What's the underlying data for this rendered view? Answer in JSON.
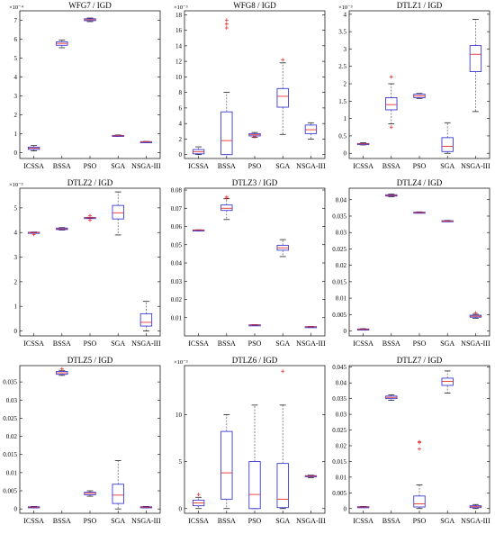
{
  "colors": {
    "box": "#3b3bd6",
    "median": "#e8312f",
    "whisker": "#555555",
    "outlier": "#e8312f",
    "axis": "#000000"
  },
  "chart_data": [
    {
      "type": "box",
      "title": "WFG7 / IGD",
      "multiplier": "×10⁻⁴",
      "ylim": [
        -0.3,
        7.5
      ],
      "yticks": [
        "0",
        "1",
        "2",
        "3",
        "4",
        "5",
        "6",
        "7"
      ],
      "ytick_values": [
        0,
        1,
        2,
        3,
        4,
        5,
        6,
        7
      ],
      "categories": [
        "ICSSA",
        "BSSA",
        "PSO",
        "SGA",
        "NSGA-III"
      ],
      "boxes": [
        {
          "min": 0.1,
          "q1": 0.18,
          "median": 0.24,
          "q3": 0.3,
          "max": 0.38,
          "outliers": []
        },
        {
          "min": 5.55,
          "q1": 5.68,
          "median": 5.78,
          "q3": 5.86,
          "max": 5.95,
          "outliers": []
        },
        {
          "min": 6.93,
          "q1": 6.98,
          "median": 7.03,
          "q3": 7.08,
          "max": 7.12,
          "outliers": []
        },
        {
          "min": 0.86,
          "q1": 0.88,
          "median": 0.9,
          "q3": 0.92,
          "max": 0.94,
          "outliers": []
        },
        {
          "min": 0.55,
          "q1": 0.57,
          "median": 0.58,
          "q3": 0.59,
          "max": 0.6,
          "outliers": []
        }
      ]
    },
    {
      "type": "box",
      "title": "WFG8 / IGD",
      "multiplier": "×10⁻³",
      "ylim": [
        -0.5,
        18.5
      ],
      "yticks": [
        "0",
        "2",
        "4",
        "6",
        "8",
        "10",
        "12",
        "14",
        "16",
        "18"
      ],
      "ytick_values": [
        0,
        2,
        4,
        6,
        8,
        10,
        12,
        14,
        16,
        18
      ],
      "categories": [
        "ICSSA",
        "BSSA",
        "PSO",
        "SGA",
        "NSGA-III"
      ],
      "boxes": [
        {
          "min": 0.0,
          "q1": 0.1,
          "median": 0.35,
          "q3": 0.65,
          "max": 1.0,
          "outliers": []
        },
        {
          "min": 0.0,
          "q1": 0.0,
          "median": 1.8,
          "q3": 5.5,
          "max": 8.0,
          "outliers": [
            16.3,
            16.8,
            17.3
          ]
        },
        {
          "min": 2.2,
          "q1": 2.4,
          "median": 2.55,
          "q3": 2.7,
          "max": 2.85,
          "outliers": [
            2.3
          ]
        },
        {
          "min": 2.6,
          "q1": 6.1,
          "median": 7.5,
          "q3": 8.5,
          "max": 11.8,
          "outliers": [
            12.2
          ]
        },
        {
          "min": 2.0,
          "q1": 2.7,
          "median": 3.2,
          "q3": 3.8,
          "max": 4.1,
          "outliers": []
        }
      ]
    },
    {
      "type": "box",
      "title": "DTLZ1 / IGD",
      "multiplier": "×10⁻³",
      "ylim": [
        -0.15,
        4.1
      ],
      "yticks": [
        "0",
        "0.5",
        "1",
        "1.5",
        "2",
        "2.5",
        "3",
        "3.5",
        "4"
      ],
      "ytick_values": [
        0,
        0.5,
        1,
        1.5,
        2,
        2.5,
        3,
        3.5,
        4
      ],
      "categories": [
        "ICSSA",
        "BSSA",
        "PSO",
        "SGA",
        "NSGA-III"
      ],
      "boxes": [
        {
          "min": 0.24,
          "q1": 0.26,
          "median": 0.27,
          "q3": 0.28,
          "max": 0.3,
          "outliers": []
        },
        {
          "min": 0.85,
          "q1": 1.25,
          "median": 1.4,
          "q3": 1.6,
          "max": 2.0,
          "outliers": [
            0.75,
            2.2
          ]
        },
        {
          "min": 1.58,
          "q1": 1.6,
          "median": 1.65,
          "q3": 1.7,
          "max": 1.72,
          "outliers": []
        },
        {
          "min": 0.0,
          "q1": 0.05,
          "median": 0.2,
          "q3": 0.45,
          "max": 0.88,
          "outliers": []
        },
        {
          "min": 1.2,
          "q1": 2.35,
          "median": 2.85,
          "q3": 3.1,
          "max": 3.85,
          "outliers": []
        }
      ]
    },
    {
      "type": "box",
      "title": "DTLZ2 / IGD",
      "multiplier": "×10⁻³",
      "ylim": [
        -0.2,
        5.8
      ],
      "yticks": [
        "0",
        "1",
        "2",
        "3",
        "4",
        "5"
      ],
      "ytick_values": [
        0,
        1,
        2,
        3,
        4,
        5
      ],
      "categories": [
        "ICSSA",
        "BSSA",
        "PSO",
        "SGA",
        "NSGA-III"
      ],
      "boxes": [
        {
          "min": 3.98,
          "q1": 3.99,
          "median": 4.0,
          "q3": 4.01,
          "max": 4.02,
          "outliers": [
            3.92
          ]
        },
        {
          "min": 4.1,
          "q1": 4.12,
          "median": 4.15,
          "q3": 4.18,
          "max": 4.2,
          "outliers": []
        },
        {
          "min": 4.58,
          "q1": 4.59,
          "median": 4.6,
          "q3": 4.61,
          "max": 4.62,
          "outliers": [
            4.5,
            4.68
          ]
        },
        {
          "min": 3.9,
          "q1": 4.55,
          "median": 4.8,
          "q3": 5.1,
          "max": 5.65,
          "outliers": []
        },
        {
          "min": 0.0,
          "q1": 0.2,
          "median": 0.35,
          "q3": 0.7,
          "max": 1.2,
          "outliers": []
        }
      ]
    },
    {
      "type": "box",
      "title": "DTLZ3 / IGD",
      "multiplier": "",
      "ylim": [
        0.0,
        0.081
      ],
      "yticks": [
        "0.01",
        "0.02",
        "0.03",
        "0.04",
        "0.05",
        "0.06",
        "0.07",
        "0.08"
      ],
      "ytick_values": [
        0.01,
        0.02,
        0.03,
        0.04,
        0.05,
        0.06,
        0.07,
        0.08
      ],
      "categories": [
        "ICSSA",
        "BSSA",
        "PSO",
        "SGA",
        "NSGA-III"
      ],
      "boxes": [
        {
          "min": 0.0578,
          "q1": 0.0579,
          "median": 0.058,
          "q3": 0.0581,
          "max": 0.0582,
          "outliers": []
        },
        {
          "min": 0.0638,
          "q1": 0.0688,
          "median": 0.07,
          "q3": 0.0718,
          "max": 0.0752,
          "outliers": [
            0.0755,
            0.0762
          ]
        },
        {
          "min": 0.0058,
          "q1": 0.0059,
          "median": 0.006,
          "q3": 0.0061,
          "max": 0.0062,
          "outliers": []
        },
        {
          "min": 0.0435,
          "q1": 0.047,
          "median": 0.0483,
          "q3": 0.0497,
          "max": 0.0528,
          "outliers": []
        },
        {
          "min": 0.0048,
          "q1": 0.0049,
          "median": 0.005,
          "q3": 0.0051,
          "max": 0.0052,
          "outliers": []
        }
      ]
    },
    {
      "type": "box",
      "title": "DTLZ4 / IGD",
      "multiplier": "",
      "ylim": [
        -0.0015,
        0.0435
      ],
      "yticks": [
        "0",
        "0.005",
        "0.01",
        "0.015",
        "0.02",
        "0.025",
        "0.03",
        "0.035",
        "0.04"
      ],
      "ytick_values": [
        0,
        0.005,
        0.01,
        0.015,
        0.02,
        0.025,
        0.03,
        0.035,
        0.04
      ],
      "categories": [
        "ICSSA",
        "BSSA",
        "PSO",
        "SGA",
        "NSGA-III"
      ],
      "boxes": [
        {
          "min": 0.0003,
          "q1": 0.0004,
          "median": 0.0005,
          "q3": 0.0006,
          "max": 0.0007,
          "outliers": []
        },
        {
          "min": 0.0409,
          "q1": 0.0411,
          "median": 0.0413,
          "q3": 0.0415,
          "max": 0.0417,
          "outliers": []
        },
        {
          "min": 0.0359,
          "q1": 0.036,
          "median": 0.0361,
          "q3": 0.0362,
          "max": 0.0363,
          "outliers": []
        },
        {
          "min": 0.0333,
          "q1": 0.0334,
          "median": 0.0335,
          "q3": 0.0336,
          "max": 0.0337,
          "outliers": []
        },
        {
          "min": 0.0039,
          "q1": 0.0042,
          "median": 0.0045,
          "q3": 0.0048,
          "max": 0.0051,
          "outliers": [
            0.0055
          ]
        }
      ]
    },
    {
      "type": "box",
      "title": "DTLZ5 / IGD",
      "multiplier": "",
      "ylim": [
        -0.0012,
        0.0395
      ],
      "yticks": [
        "0",
        "0.005",
        "0.01",
        "0.015",
        "0.02",
        "0.025",
        "0.03",
        "0.035"
      ],
      "ytick_values": [
        0,
        0.005,
        0.01,
        0.015,
        0.02,
        0.025,
        0.03,
        0.035
      ],
      "categories": [
        "ICSSA",
        "BSSA",
        "PSO",
        "SGA",
        "NSGA-III"
      ],
      "boxes": [
        {
          "min": 0.0003,
          "q1": 0.0004,
          "median": 0.0005,
          "q3": 0.0006,
          "max": 0.0007,
          "outliers": []
        },
        {
          "min": 0.0368,
          "q1": 0.0371,
          "median": 0.0375,
          "q3": 0.0379,
          "max": 0.0382,
          "outliers": [
            0.0386
          ]
        },
        {
          "min": 0.0035,
          "q1": 0.0039,
          "median": 0.0043,
          "q3": 0.0046,
          "max": 0.005,
          "outliers": []
        },
        {
          "min": 0.0,
          "q1": 0.0015,
          "median": 0.0038,
          "q3": 0.0068,
          "max": 0.0133,
          "outliers": []
        },
        {
          "min": 0.0003,
          "q1": 0.0004,
          "median": 0.0005,
          "q3": 0.0006,
          "max": 0.0007,
          "outliers": []
        }
      ]
    },
    {
      "type": "box",
      "title": "DTLZ6 / IGD",
      "multiplier": "×10⁻³",
      "ylim": [
        -0.5,
        15.2
      ],
      "yticks": [
        "0",
        "5",
        "10"
      ],
      "ytick_values": [
        0,
        5,
        10
      ],
      "categories": [
        "ICSSA",
        "BSSA",
        "PSO",
        "SGA",
        "NSGA-III"
      ],
      "boxes": [
        {
          "min": 0.0,
          "q1": 0.3,
          "median": 0.6,
          "q3": 0.9,
          "max": 1.2,
          "outliers": [
            1.5
          ]
        },
        {
          "min": 0.0,
          "q1": 1.0,
          "median": 3.8,
          "q3": 8.2,
          "max": 10.0,
          "outliers": []
        },
        {
          "min": 0.0,
          "q1": 0.0,
          "median": 1.5,
          "q3": 5.0,
          "max": 11.0,
          "outliers": []
        },
        {
          "min": 0.0,
          "q1": 0.1,
          "median": 1.0,
          "q3": 4.8,
          "max": 11.0,
          "outliers": [
            14.6
          ]
        },
        {
          "min": 3.3,
          "q1": 3.4,
          "median": 3.45,
          "q3": 3.5,
          "max": 3.55,
          "outliers": []
        }
      ]
    },
    {
      "type": "box",
      "title": "DTLZ7 / IGD",
      "multiplier": "",
      "ylim": [
        -0.0015,
        0.0455
      ],
      "yticks": [
        "0",
        "0.005",
        "0.01",
        "0.015",
        "0.02",
        "0.025",
        "0.03",
        "0.035",
        "0.04",
        "0.045"
      ],
      "ytick_values": [
        0,
        0.005,
        0.01,
        0.015,
        0.02,
        0.025,
        0.03,
        0.035,
        0.04,
        0.045
      ],
      "categories": [
        "ICSSA",
        "BSSA",
        "PSO",
        "SGA",
        "NSGA-III"
      ],
      "boxes": [
        {
          "min": 0.0003,
          "q1": 0.0004,
          "median": 0.0005,
          "q3": 0.0006,
          "max": 0.0007,
          "outliers": []
        },
        {
          "min": 0.0345,
          "q1": 0.035,
          "median": 0.0354,
          "q3": 0.0358,
          "max": 0.0362,
          "outliers": []
        },
        {
          "min": 0.0,
          "q1": 0.0005,
          "median": 0.0015,
          "q3": 0.004,
          "max": 0.0075,
          "outliers": [
            0.019,
            0.021,
            0.0213
          ]
        },
        {
          "min": 0.0368,
          "q1": 0.0392,
          "median": 0.0405,
          "q3": 0.0415,
          "max": 0.0438,
          "outliers": []
        },
        {
          "min": 0.0,
          "q1": 0.0003,
          "median": 0.0006,
          "q3": 0.0009,
          "max": 0.0013,
          "outliers": []
        }
      ]
    }
  ]
}
